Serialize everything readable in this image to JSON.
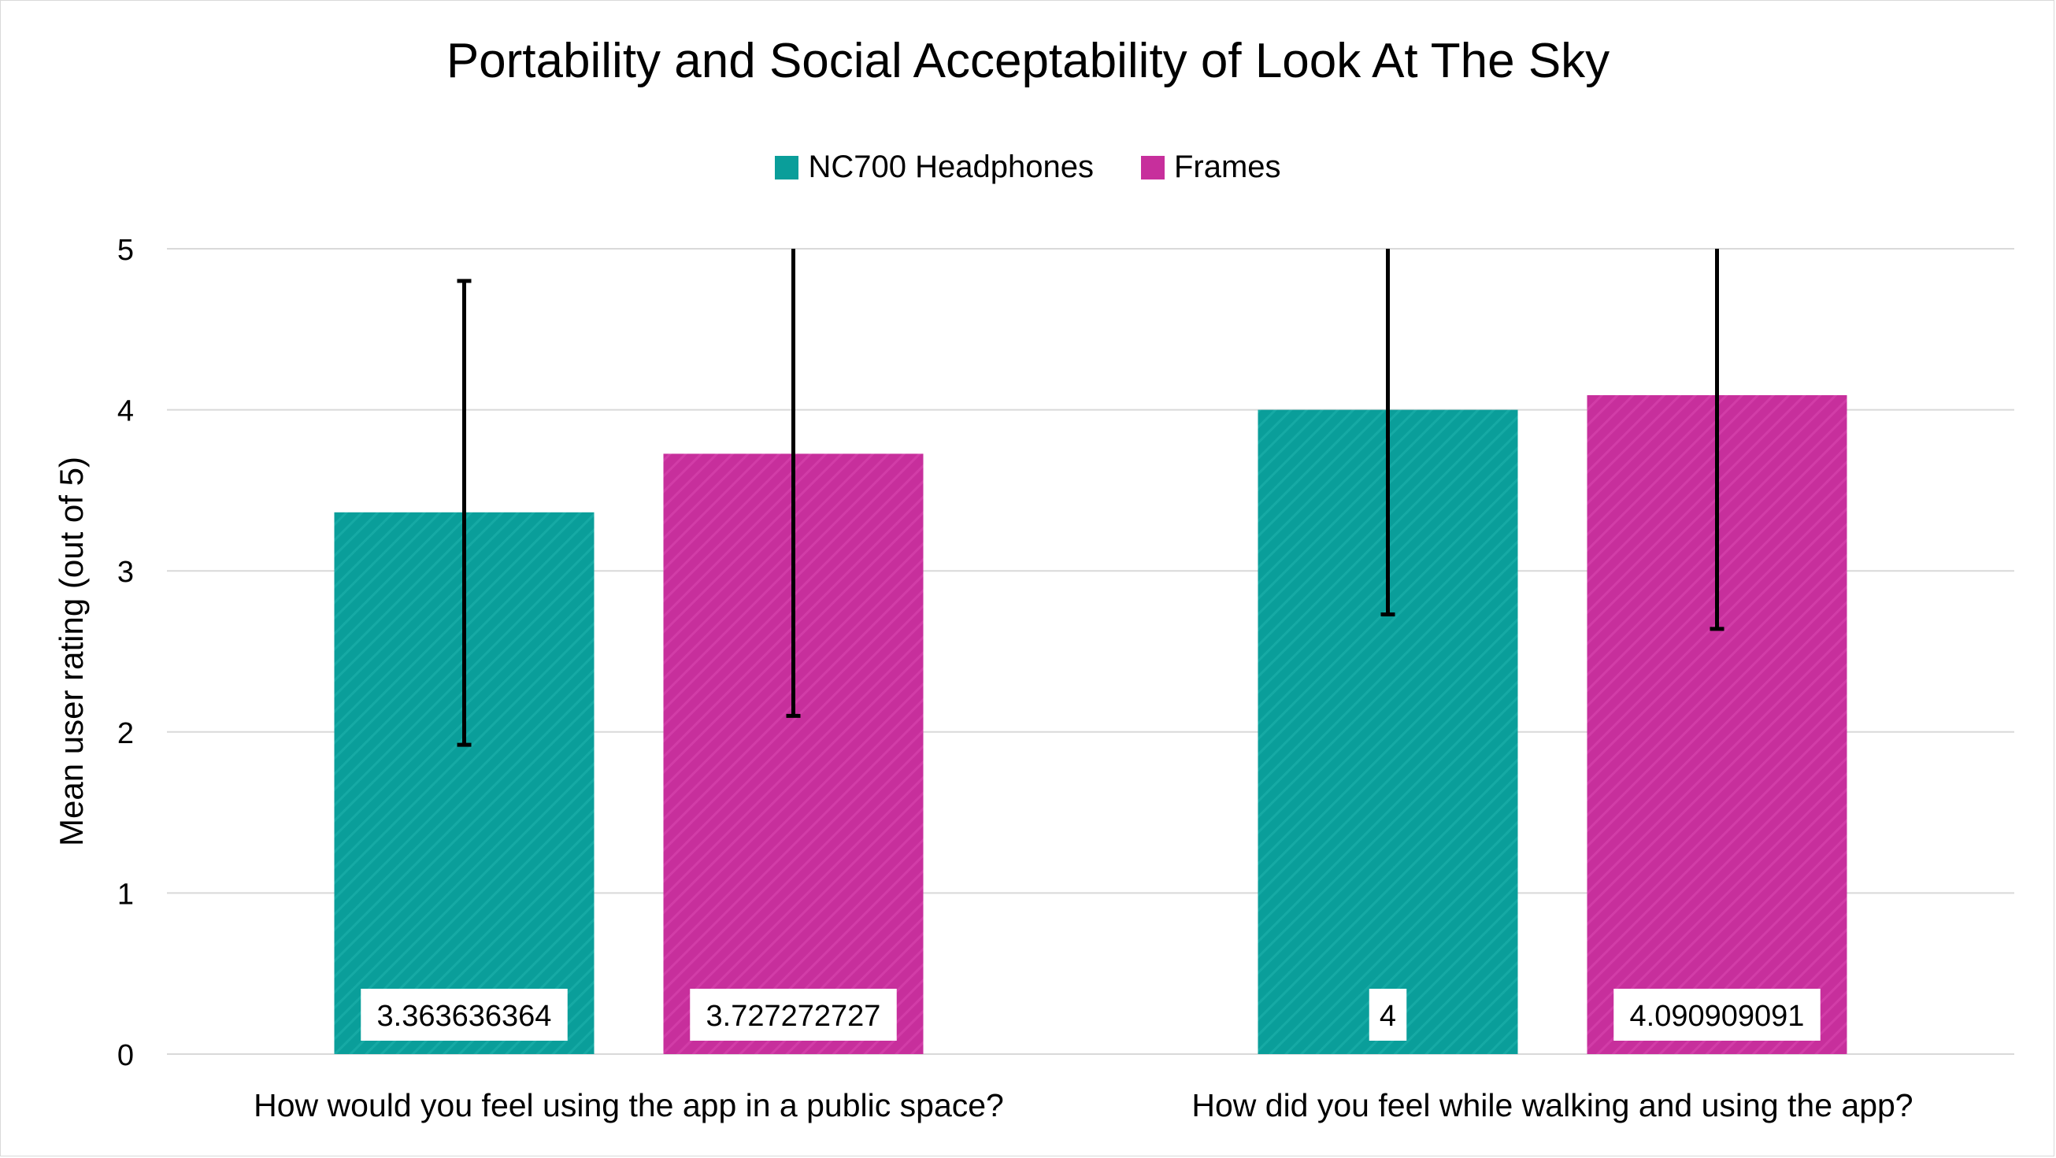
{
  "chart_data": {
    "type": "bar",
    "title": "Portability and Social Acceptability of Look At The Sky",
    "ylabel": "Mean user rating (out of 5)",
    "xlabel": "",
    "ylim": [
      0,
      5
    ],
    "yticks": [
      "0",
      "1",
      "2",
      "3",
      "4",
      "5"
    ],
    "grid": true,
    "legend_position": "top",
    "categories": [
      "How would you feel using the app in a public space?",
      "How did you feel while walking and using the app?"
    ],
    "series": [
      {
        "name": "NC700 Headphones",
        "color": "#0a9e9a",
        "values": [
          3.363636364,
          4
        ],
        "labels": [
          "3.363636364",
          "4"
        ],
        "error_low": [
          1.92,
          2.73
        ],
        "error_high": [
          4.8,
          5
        ]
      },
      {
        "name": "Frames",
        "color": "#c72f9c",
        "values": [
          3.727272727,
          4.090909091
        ],
        "labels": [
          "3.727272727",
          "4.090909091"
        ],
        "error_low": [
          2.1,
          2.64
        ],
        "error_high": [
          5,
          5
        ]
      }
    ]
  }
}
